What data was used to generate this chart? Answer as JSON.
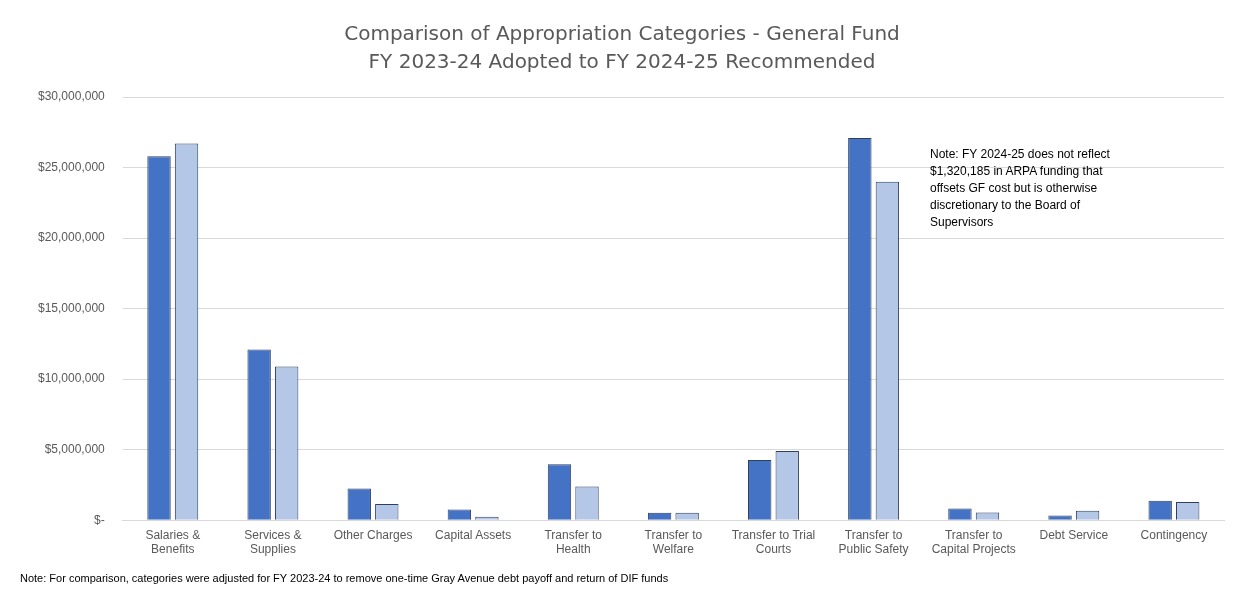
{
  "chart_data": {
    "type": "bar",
    "title": "Comparison of Appropriation Categories - General Fund",
    "subtitle": "FY 2023-24 Adopted to FY 2024-25 Recommended",
    "categories": [
      "Salaries & Benefits",
      "Services & Supplies",
      "Other Charges",
      "Capital Assets",
      "Transfer to Health",
      "Transfer to Welfare",
      "Transfer to Trial Courts",
      "Transfer to Public Safety",
      "Transfer to Capital Projects",
      "Debt Service",
      "Contingency"
    ],
    "series": [
      {
        "color": "#4472c4",
        "values": [
          25800000,
          12100000,
          2240000,
          760000,
          3970000,
          520000,
          4260000,
          27100000,
          830000,
          340000,
          1380000
        ]
      },
      {
        "color": "#b4c7e7",
        "values": [
          26700000,
          10900000,
          1150000,
          250000,
          2390000,
          520000,
          4900000,
          24000000,
          550000,
          670000,
          1290000
        ]
      }
    ],
    "ylim": [
      0,
      30000000
    ],
    "yticks": [
      {
        "value": 0,
        "label": "$-"
      },
      {
        "value": 5000000,
        "label": "$5,000,000"
      },
      {
        "value": 10000000,
        "label": "$10,000,000"
      },
      {
        "value": 15000000,
        "label": "$15,000,000"
      },
      {
        "value": 20000000,
        "label": "$20,000,000"
      },
      {
        "value": 25000000,
        "label": "$25,000,000"
      },
      {
        "value": 30000000,
        "label": "$30,000,000"
      }
    ],
    "grid": "y",
    "legend": false,
    "annotations": [
      "Note: FY 2024-25 does not reflect $1,320,185 in ARPA funding that offsets GF cost but is otherwise discretionary to the Board of Supervisors",
      "Note: For comparison, categories were adjusted for FY 2023-24 to remove one-time Gray Avenue debt payoff and return of DIF funds"
    ]
  }
}
